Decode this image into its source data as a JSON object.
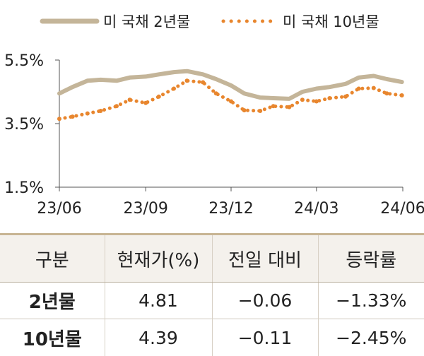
{
  "chart_data": {
    "type": "line",
    "title": "",
    "xlabel": "",
    "ylabel": "",
    "x_tick_labels": [
      "23/06",
      "23/09",
      "23/12",
      "24/03",
      "24/06"
    ],
    "y_tick_labels": [
      "5.5%",
      "3.5%",
      "1.5%"
    ],
    "y_ticks": [
      5.5,
      3.5,
      1.5
    ],
    "ylim": [
      1.5,
      5.5
    ],
    "grid": false,
    "legend_position": "top",
    "series": [
      {
        "name": "미 국채 2년물",
        "style": "solid",
        "color": "#c4b599",
        "x": [
          "2023-06-01",
          "2023-06-15",
          "2023-07-01",
          "2023-07-15",
          "2023-08-01",
          "2023-08-15",
          "2023-09-01",
          "2023-09-15",
          "2023-10-01",
          "2023-10-15",
          "2023-11-01",
          "2023-11-15",
          "2023-12-01",
          "2023-12-15",
          "2024-01-01",
          "2024-01-15",
          "2024-02-01",
          "2024-02-15",
          "2024-03-01",
          "2024-03-15",
          "2024-04-01",
          "2024-04-15",
          "2024-05-01",
          "2024-05-15",
          "2024-05-31"
        ],
        "values": [
          4.45,
          4.65,
          4.85,
          4.88,
          4.85,
          4.95,
          4.98,
          5.05,
          5.12,
          5.15,
          5.05,
          4.9,
          4.7,
          4.45,
          4.32,
          4.3,
          4.28,
          4.5,
          4.6,
          4.65,
          4.75,
          4.95,
          5.0,
          4.9,
          4.81
        ]
      },
      {
        "name": "미 국채 10년물",
        "style": "dotted",
        "color": "#e8862e",
        "x": [
          "2023-06-01",
          "2023-06-15",
          "2023-07-01",
          "2023-07-15",
          "2023-08-01",
          "2023-08-15",
          "2023-09-01",
          "2023-09-15",
          "2023-10-01",
          "2023-10-15",
          "2023-11-01",
          "2023-11-15",
          "2023-12-01",
          "2023-12-15",
          "2024-01-01",
          "2024-01-15",
          "2024-02-01",
          "2024-02-15",
          "2024-03-01",
          "2024-03-15",
          "2024-04-01",
          "2024-04-15",
          "2024-05-01",
          "2024-05-15",
          "2024-05-31"
        ],
        "values": [
          3.65,
          3.72,
          3.82,
          3.9,
          4.05,
          4.25,
          4.15,
          4.35,
          4.6,
          4.85,
          4.8,
          4.45,
          4.2,
          3.92,
          3.9,
          4.05,
          4.02,
          4.25,
          4.2,
          4.3,
          4.35,
          4.6,
          4.62,
          4.45,
          4.39
        ]
      }
    ]
  },
  "table": {
    "headers": [
      "구분",
      "현재가(%)",
      "전일 대비",
      "등락률"
    ],
    "rows": [
      [
        "2년물",
        "4.81",
        "−0.06",
        "−1.33%"
      ],
      [
        "10년물",
        "4.39",
        "−0.11",
        "−2.45%"
      ]
    ]
  }
}
